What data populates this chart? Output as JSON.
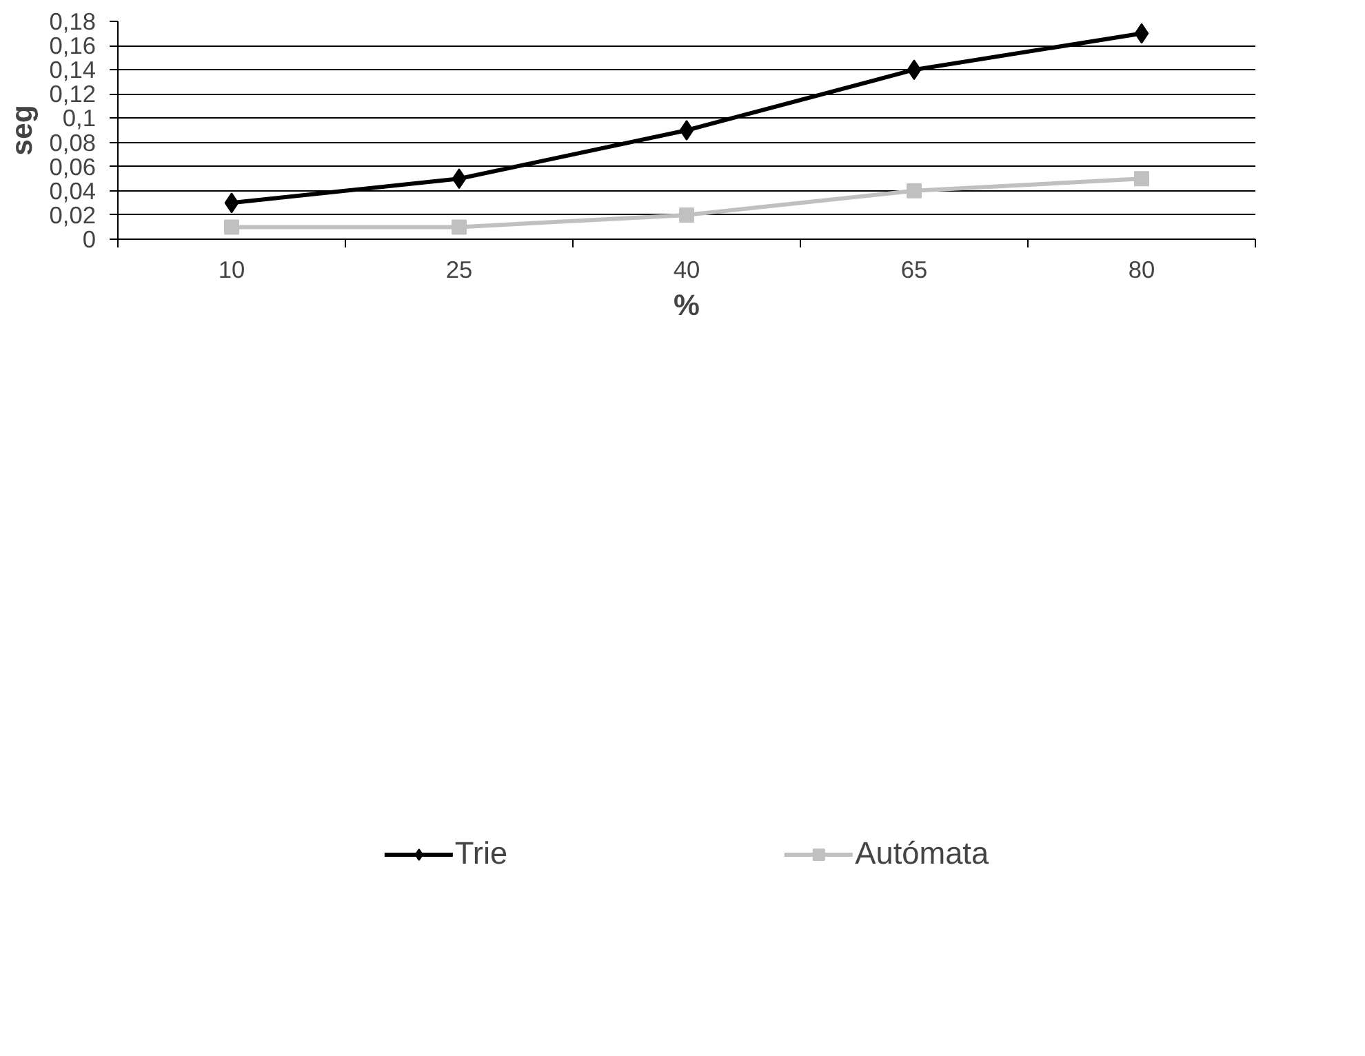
{
  "chart_data": {
    "type": "line",
    "xlabel": "%",
    "ylabel": "seg",
    "categories": [
      "10",
      "25",
      "40",
      "65",
      "80"
    ],
    "series": [
      {
        "name": "Trie",
        "color": "#000000",
        "marker": "diamond",
        "values": [
          0.03,
          0.05,
          0.09,
          0.14,
          0.17
        ]
      },
      {
        "name": "Autómata",
        "color": "#c0c0c0",
        "marker": "square",
        "values": [
          0.01,
          0.01,
          0.02,
          0.04,
          0.05
        ]
      }
    ],
    "ylim": [
      0,
      0.18
    ],
    "yticks": [
      0,
      {
        "value": 0.02,
        "label": "0,02"
      },
      {
        "value": 0.04,
        "label": "0,04"
      },
      {
        "value": 0.06,
        "label": "0,06"
      },
      {
        "value": 0.08,
        "label": "0,08"
      },
      {
        "value": 0.1,
        "label": "0,1"
      },
      {
        "value": 0.12,
        "label": "0,12"
      },
      {
        "value": 0.14,
        "label": "0,14"
      },
      {
        "value": 0.16,
        "label": "0,16"
      },
      {
        "value": 0.18,
        "label": "0,18"
      }
    ],
    "grid": "y",
    "legend": "bottom",
    "line_style": "solid"
  }
}
